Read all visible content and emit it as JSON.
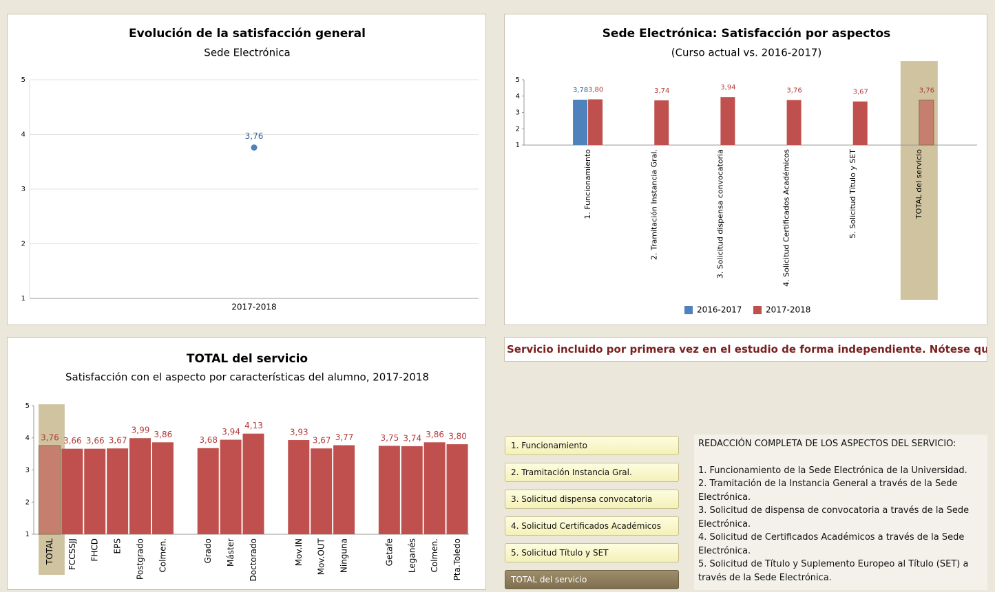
{
  "chart_data": [
    {
      "type": "line",
      "title": "Evolución de la satisfacción general",
      "subtitle": "Sede Electrónica",
      "categories": [
        "2017-2018"
      ],
      "values": [
        3.76
      ],
      "value_labels": [
        "3,76"
      ],
      "color": "#4f81bd",
      "ylim": [
        1,
        5
      ],
      "yticks": [
        1,
        2,
        3,
        4,
        5
      ],
      "grid": true
    },
    {
      "type": "bar",
      "title": "Sede Electrónica: Satisfacción por aspectos",
      "subtitle": "(Curso actual vs. 2016-2017)",
      "categories": [
        "1. Funcionamiento",
        "2. Tramitación Instancia Gral.",
        "3. Solicitud dispensa convocatoria",
        "4. Solicitud Certificados Académicos",
        "5. Solicitud Título y SET",
        "TOTAL del servicio"
      ],
      "series": [
        {
          "name": "2016-2017",
          "color": "#4f81bd",
          "values": [
            3.78,
            null,
            null,
            null,
            null,
            null
          ],
          "value_labels": [
            "3,78",
            null,
            null,
            null,
            null,
            null
          ]
        },
        {
          "name": "2017-2018",
          "color": "#c0504d",
          "values": [
            3.8,
            3.74,
            3.94,
            3.76,
            3.67,
            3.76
          ],
          "value_labels": [
            "3,80",
            "3,74",
            "3,94",
            "3,76",
            "3,67",
            "3,76"
          ]
        }
      ],
      "ylim": [
        1,
        5
      ],
      "yticks": [
        1,
        2,
        3,
        4,
        5
      ],
      "grid": false,
      "highlight_category": 5,
      "highlight_color": "#cfc3a0"
    },
    {
      "type": "bar",
      "title": "TOTAL del servicio",
      "subtitle": "Satisfacción con el aspecto por características del alumno, 2017-2018",
      "categories": [
        "TOTAL",
        "FCCSSJJ",
        "FHCD",
        "EPS",
        "Postgrado",
        "Colmen.",
        null,
        "Grado",
        "Máster",
        "Doctorado",
        null,
        "Mov.IN",
        "Mov.OUT",
        "Ninguna",
        null,
        "Getafe",
        "Leganés",
        "Colmen.",
        "Pta.Toledo"
      ],
      "values": [
        3.76,
        3.66,
        3.66,
        3.67,
        3.99,
        3.86,
        null,
        3.68,
        3.94,
        4.13,
        null,
        3.93,
        3.67,
        3.77,
        null,
        3.75,
        3.74,
        3.86,
        3.8
      ],
      "value_labels": [
        "3,76",
        "3,66",
        "3,66",
        "3,67",
        "3,99",
        "3,86",
        null,
        "3,68",
        "3,94",
        "4,13",
        null,
        "3,93",
        "3,67",
        "3,77",
        null,
        "3,75",
        "3,74",
        "3,86",
        "3,80"
      ],
      "color": "#c0504d",
      "ylim": [
        1,
        5
      ],
      "yticks": [
        1,
        2,
        3,
        4,
        5
      ],
      "grid": false,
      "highlight_category": 0,
      "highlight_color": "#cfc3a0"
    }
  ],
  "banner": "Servicio incluido por primera vez en el estudio de forma independiente. Nótese que",
  "buttons": [
    "1. Funcionamiento",
    "2. Tramitación Instancia Gral.",
    "3. Solicitud dispensa convocatoria",
    "4. Solicitud Certificados Académicos",
    "5. Solicitud Título y SET",
    "TOTAL del servicio"
  ],
  "active_button": 5,
  "description": {
    "heading": "REDACCIÓN COMPLETA DE LOS ASPECTOS DEL SERVICIO:",
    "items": [
      "1. Funcionamiento de la Sede Electrónica de la Universidad.",
      "2. Tramitación de la Instancia General a través de la Sede Electrónica.",
      "3. Solicitud de dispensa de convocatoria a través de la Sede Electrónica.",
      "4. Solicitud de Certificados Académicos a través de la Sede Electrónica.",
      "5. Solicitud de Título y Suplemento Europeo al Título (SET) a través de la Sede Electrónica."
    ]
  }
}
